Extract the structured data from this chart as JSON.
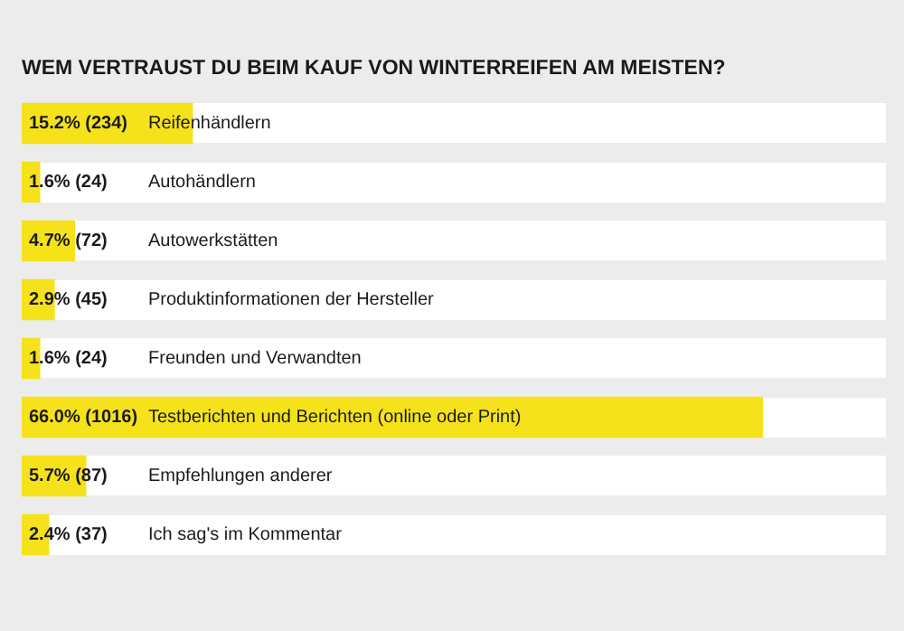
{
  "chart_data": {
    "type": "bar",
    "orientation": "horizontal",
    "title": "WEM VERTRAUST DU BEIM KAUF VON WINTERREIFEN AM MEISTEN?",
    "categories": [
      "Reifenhändlern",
      "Autohändlern",
      "Autowerkstätten",
      "Produktinformationen der Hersteller",
      "Freunden und Verwandten",
      "Testberichten und Berichten (online oder Print)",
      "Empfehlungen anderer",
      "Ich sag's im Kommentar"
    ],
    "values": [
      15.2,
      1.6,
      4.7,
      2.9,
      1.6,
      66.0,
      5.7,
      2.4
    ],
    "value_labels": [
      "15.2% (234)",
      "1.6% (24)",
      "4.7% (72)",
      "2.9% (45)",
      "1.6% (24)",
      "66.0% (1016)",
      "5.7% (87)",
      "2.4% (37)"
    ],
    "color": "#f5e21b",
    "xlim": [
      0,
      77
    ],
    "tick_labels": false,
    "legend": false
  }
}
